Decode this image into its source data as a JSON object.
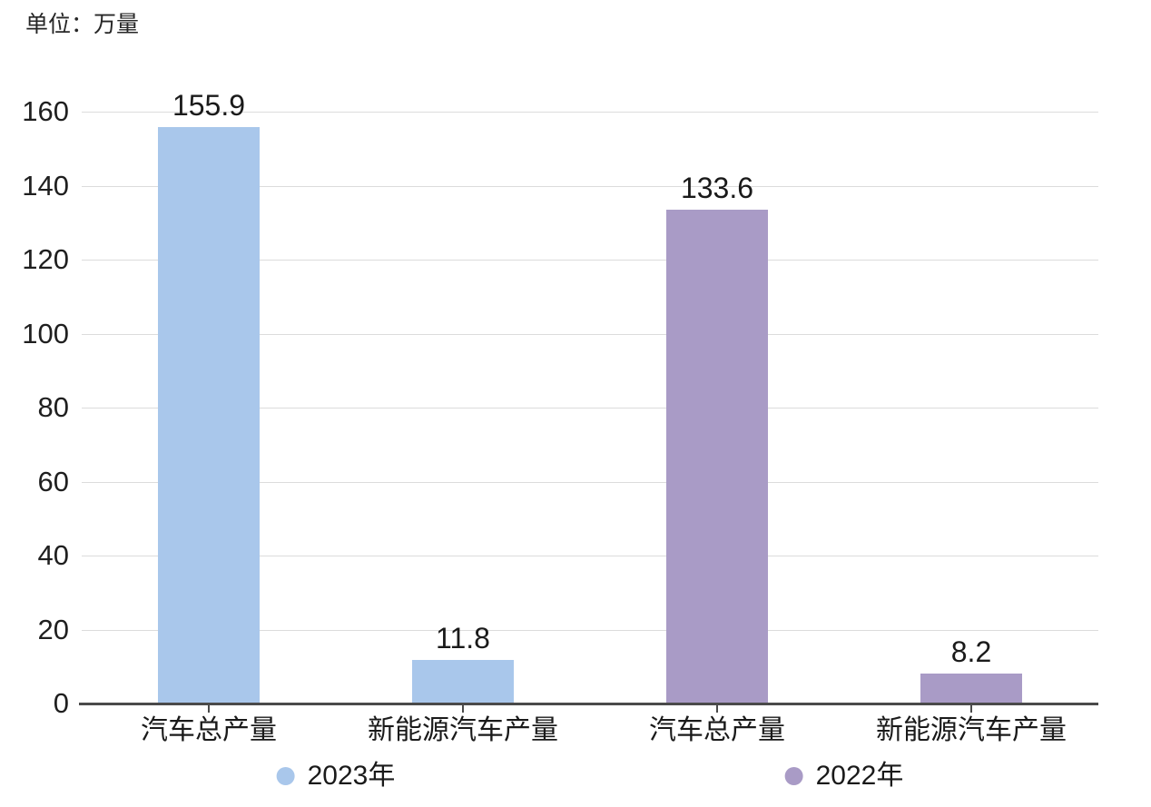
{
  "unit_label": "单位：万量",
  "chart_data": {
    "type": "bar",
    "title": "",
    "unit_label": "单位：万量",
    "ylim": [
      0,
      160
    ],
    "yticks": [
      0,
      20,
      40,
      60,
      80,
      100,
      120,
      140,
      160
    ],
    "grid": true,
    "legend_position": "bottom",
    "categories": [
      "汽车总产量",
      "新能源汽车产量",
      "汽车总产量",
      "新能源汽车产量"
    ],
    "series": [
      {
        "name": "2023年",
        "color": "#a9c7eb",
        "categories": [
          "汽车总产量",
          "新能源汽车产量"
        ],
        "values": [
          155.9,
          11.8
        ],
        "value_labels": [
          "155.9",
          "11.8"
        ]
      },
      {
        "name": "2022年",
        "color": "#a99bc6",
        "categories": [
          "汽车总产量",
          "新能源汽车产量"
        ],
        "values": [
          133.6,
          8.2
        ],
        "value_labels": [
          "133.6",
          "8.2"
        ]
      }
    ],
    "legend": [
      {
        "label": "2023年",
        "color": "#a9c7eb"
      },
      {
        "label": "2022年",
        "color": "#a99bc6"
      }
    ]
  },
  "colors": {
    "background": "#ffffff",
    "grid_line": "#dcdcdc",
    "axis_line": "#4a4a4a",
    "text": "#1f1f1f",
    "series_2023": "#a9c7eb",
    "series_2022": "#a99bc6"
  }
}
